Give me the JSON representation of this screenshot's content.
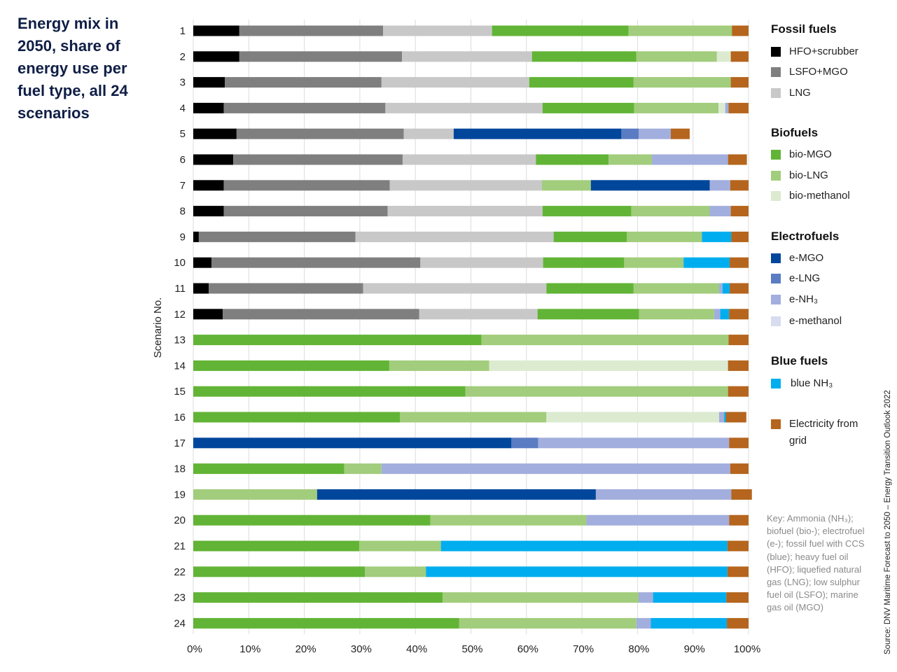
{
  "title": "Energy mix in 2050, share of energy use per fuel type, all 24 scenarios",
  "source": "Source: DNV Maritime Forecast to 2050 – Energy Transition Outlook 2022",
  "key_text": "Key: Ammonia (NH₃); biofuel (bio-); electrofuel (e-); fossil fuel with CCS (blue); heavy fuel oil (HFO); liquefied natural gas (LNG); low sulphur fuel oil (LSFO); marine gas oil (MGO)",
  "legend": {
    "fossil_title": "Fossil fuels",
    "bio_title": "Biofuels",
    "electro_title": "Electrofuels",
    "blue_title": "Blue fuels"
  },
  "chart_data": {
    "type": "bar",
    "orientation": "horizontal",
    "stacked": true,
    "ylabel": "Scenario No.",
    "xlim": [
      0,
      100
    ],
    "x_tick_labels": [
      "0%",
      "10%",
      "20%",
      "30%",
      "40%",
      "50%",
      "60%",
      "70%",
      "80%",
      "90%",
      "100%"
    ],
    "categories": [
      "1",
      "2",
      "3",
      "4",
      "5",
      "6",
      "7",
      "8",
      "9",
      "10",
      "11",
      "12",
      "13",
      "14",
      "15",
      "16",
      "17",
      "18",
      "19",
      "20",
      "21",
      "22",
      "23",
      "24"
    ],
    "series": [
      {
        "name": "HFO+scrubber",
        "color": "#000000",
        "group": "fossil",
        "values": [
          8.3,
          8.3,
          5.7,
          5.5,
          7.8,
          7.2,
          5.5,
          5.5,
          1.0,
          3.3,
          2.8,
          5.3,
          0,
          0,
          0,
          0,
          0,
          0,
          0,
          0,
          0,
          0,
          0,
          0
        ]
      },
      {
        "name": "LSFO+MGO",
        "color": "#7f7f7f",
        "group": "fossil",
        "values": [
          25.9,
          29.3,
          28.2,
          29.1,
          30.1,
          30.5,
          29.9,
          29.5,
          28.2,
          37.6,
          27.8,
          35.4,
          0,
          0,
          0,
          0,
          0,
          0,
          0,
          0,
          0,
          0,
          0,
          0
        ]
      },
      {
        "name": "LNG",
        "color": "#c8c8c8",
        "group": "fossil",
        "values": [
          19.6,
          23.4,
          26.6,
          28.3,
          9.0,
          24.0,
          27.4,
          27.9,
          35.7,
          22.1,
          33.0,
          21.3,
          0,
          0,
          0,
          0,
          0,
          0,
          0,
          0,
          0,
          0,
          0,
          0
        ]
      },
      {
        "name": "bio-MGO",
        "color": "#62b436",
        "group": "bio",
        "values": [
          24.6,
          18.8,
          18.8,
          16.5,
          0,
          13.1,
          0,
          16.0,
          13.2,
          14.6,
          15.7,
          18.3,
          51.9,
          35.3,
          49.0,
          37.2,
          0,
          27.2,
          0,
          42.7,
          29.9,
          30.9,
          44.9,
          47.9
        ]
      },
      {
        "name": "bio-LNG",
        "color": "#a2cd7c",
        "group": "bio",
        "values": [
          18.6,
          14.5,
          17.5,
          15.2,
          0,
          7.8,
          8.8,
          14.1,
          13.5,
          10.7,
          15.4,
          13.5,
          44.5,
          18.0,
          47.3,
          26.4,
          0,
          6.7,
          22.3,
          28.1,
          14.7,
          11.0,
          35.3,
          31.9
        ]
      },
      {
        "name": "bio-methanol",
        "color": "#dcebd0",
        "group": "bio",
        "values": [
          0,
          2.5,
          0,
          1.2,
          0,
          0,
          0,
          0,
          0,
          0,
          0,
          0,
          0,
          43.0,
          0,
          31.1,
          0,
          0,
          0,
          0,
          0,
          0,
          0,
          0
        ]
      },
      {
        "name": "e-MGO",
        "color": "#00479c",
        "group": "electro",
        "values": [
          0,
          0,
          0,
          0,
          30.2,
          0,
          21.4,
          0,
          0,
          0,
          0,
          0,
          0,
          0,
          0,
          0,
          57.3,
          0,
          50.2,
          0,
          0,
          0,
          0,
          0
        ]
      },
      {
        "name": "e-LNG",
        "color": "#5a7cc2",
        "group": "electro",
        "values": [
          0,
          0,
          0,
          0,
          3.1,
          0,
          0,
          0,
          0,
          0,
          0,
          0,
          0,
          0,
          0,
          0,
          4.8,
          0,
          0,
          0,
          0,
          0,
          0,
          0
        ]
      },
      {
        "name": "e-NH₃",
        "color": "#a2aedd",
        "group": "electro",
        "values": [
          0,
          0,
          0,
          0.6,
          5.8,
          13.7,
          3.7,
          3.8,
          0,
          0,
          0.6,
          1.1,
          0,
          0,
          0,
          0.9,
          34.4,
          62.8,
          24.4,
          25.7,
          0,
          0,
          2.6,
          2.6
        ]
      },
      {
        "name": "e-methanol",
        "color": "#d7dcf0",
        "group": "electro",
        "values": [
          0,
          0,
          0,
          0,
          0,
          0,
          0,
          0,
          0,
          0,
          0,
          0,
          0,
          0,
          0,
          0,
          0,
          0,
          0,
          0,
          0,
          0,
          0,
          0
        ]
      },
      {
        "name": "blue NH₃",
        "color": "#00aeef",
        "group": "blue",
        "values": [
          0,
          0,
          0,
          0,
          0,
          0,
          0,
          0,
          5.3,
          8.3,
          1.3,
          1.6,
          0,
          0,
          0,
          0.3,
          0,
          0,
          0,
          0,
          51.6,
          54.3,
          13.2,
          13.7
        ]
      },
      {
        "name": "Electricity from grid",
        "color": "#b5651d",
        "group": "other",
        "values": [
          3.0,
          3.2,
          3.2,
          3.6,
          3.4,
          3.4,
          3.3,
          3.2,
          3.1,
          3.4,
          3.4,
          3.5,
          3.6,
          3.7,
          3.7,
          3.7,
          3.5,
          3.3,
          3.7,
          3.5,
          3.8,
          3.8,
          4.0,
          3.9
        ]
      }
    ]
  }
}
